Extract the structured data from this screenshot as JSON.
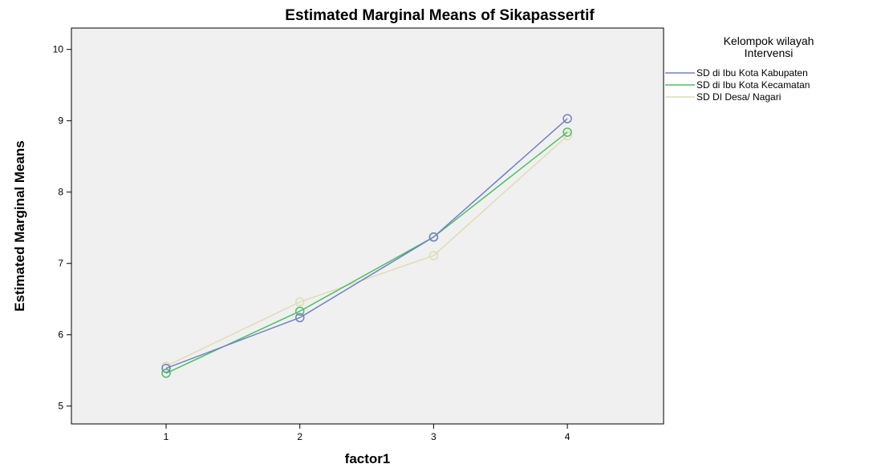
{
  "chart_data": {
    "type": "line",
    "title": "Estimated Marginal Means of Sikapassertif",
    "xlabel": "factor1",
    "ylabel": "Estimated Marginal Means",
    "categories": [
      "1",
      "2",
      "3",
      "4"
    ],
    "ylim": [
      4.75,
      10.3
    ],
    "yticks": [
      5,
      6,
      7,
      8,
      9,
      10
    ],
    "grid": false,
    "plot_background": "#f0f0f0",
    "legend": {
      "title_lines": [
        "Kelompok  wilayah",
        "Intervensi"
      ],
      "placement": "right"
    },
    "series": [
      {
        "name": "SD di Ibu Kota Kabupaten",
        "color": "#7080c8",
        "values": [
          5.53,
          6.24,
          7.37,
          9.03
        ]
      },
      {
        "name": "SD di Ibu Kota Kecamatan",
        "color": "#4cc060",
        "values": [
          5.46,
          6.33,
          7.37,
          8.84
        ]
      },
      {
        "name": "SD DI Desa/ Nagari",
        "color": "#e0dcb4",
        "values": [
          5.56,
          6.46,
          7.11,
          8.79
        ]
      }
    ]
  }
}
